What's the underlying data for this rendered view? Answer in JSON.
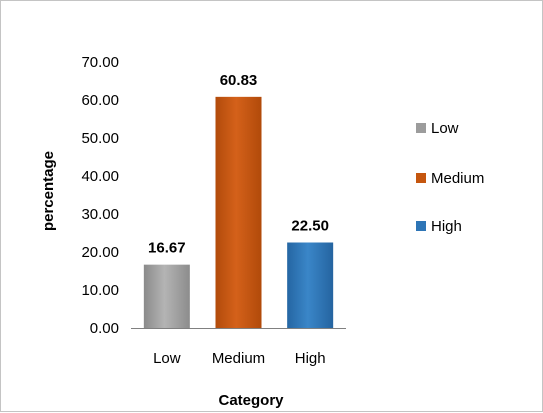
{
  "chart_data": {
    "type": "bar",
    "categories": [
      "Low",
      "Medium",
      "High"
    ],
    "values": [
      16.67,
      60.83,
      22.5
    ],
    "value_labels": [
      "16.67",
      "60.83",
      "22.50"
    ],
    "colors": [
      "#9c9c9c",
      "#c5560e",
      "#2e75b6"
    ],
    "title": "",
    "xlabel": "Category",
    "ylabel": "percentage",
    "ylim": [
      0,
      70
    ],
    "y_ticks": [
      "0.00",
      "10.00",
      "20.00",
      "30.00",
      "40.00",
      "50.00",
      "60.00",
      "70.00"
    ],
    "grid": false,
    "legend": {
      "position": "right",
      "entries": [
        "Low",
        "Medium",
        "High"
      ]
    }
  }
}
